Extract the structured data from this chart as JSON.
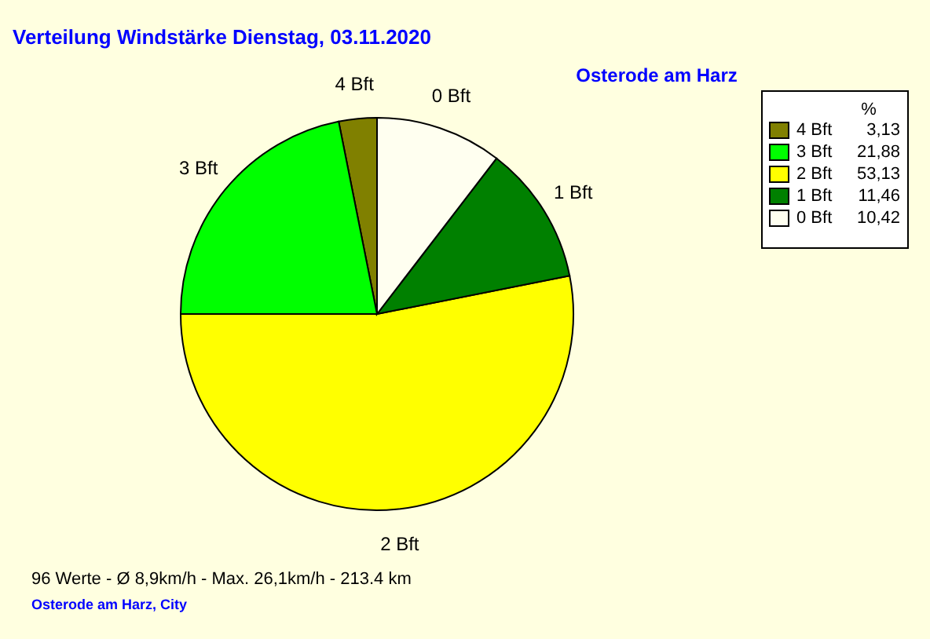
{
  "chart_data": {
    "type": "pie",
    "title": "Verteilung Windstärke  Dienstag, 03.11.2020",
    "subtitle": "Osterode am Harz",
    "legend_title": "%",
    "categories": [
      "4 Bft",
      "3 Bft",
      "2 Bft",
      "1 Bft",
      "0 Bft"
    ],
    "values": [
      3.13,
      21.88,
      53.13,
      11.46,
      10.42
    ],
    "value_labels": [
      "3,13",
      "21,88",
      "53,13",
      "11,46",
      "10,42"
    ],
    "colors": [
      "#808000",
      "#00ff00",
      "#ffff00",
      "#008000",
      "#fffff0"
    ],
    "legend": "top right",
    "annotations": [
      "96 Werte   -   Ø 8,9km/h  -  Max. 26,1km/h   -   213.4 km",
      "Osterode am Harz, City"
    ]
  }
}
